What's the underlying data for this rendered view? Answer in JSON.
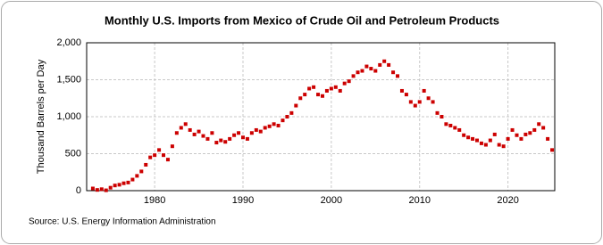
{
  "chart_data": {
    "type": "scatter",
    "title": "Monthly U.S. Imports from Mexico of Crude Oil and Petroleum Products",
    "y_label": "Thousand Barrels per Day",
    "source": "Source: U.S. Energy Information Administration",
    "color": "#cc0000",
    "grid": true,
    "xlim": [
      1972.3,
      2025.3
    ],
    "xticks": [
      1980,
      1990,
      2000,
      2010,
      2020
    ],
    "ylim": [
      0,
      2000
    ],
    "yticks": [
      0,
      500,
      {
        "value": 1000,
        "label": "1,000"
      },
      {
        "value": 1500,
        "label": "1,500"
      },
      {
        "value": 2000,
        "label": "2,000"
      }
    ],
    "x": [
      1973.0,
      1973.5,
      1974.0,
      1974.5,
      1975.0,
      1975.5,
      1976.0,
      1976.5,
      1977.0,
      1977.5,
      1978.0,
      1978.5,
      1979.0,
      1979.5,
      1980.0,
      1980.5,
      1981.0,
      1981.5,
      1982.0,
      1982.5,
      1983.0,
      1983.5,
      1984.0,
      1984.5,
      1985.0,
      1985.5,
      1986.0,
      1986.5,
      1987.0,
      1987.5,
      1988.0,
      1988.5,
      1989.0,
      1989.5,
      1990.0,
      1990.5,
      1991.0,
      1991.5,
      1992.0,
      1992.5,
      1993.0,
      1993.5,
      1994.0,
      1994.5,
      1995.0,
      1995.5,
      1996.0,
      1996.5,
      1997.0,
      1997.5,
      1998.0,
      1998.5,
      1999.0,
      1999.5,
      2000.0,
      2000.5,
      2001.0,
      2001.5,
      2002.0,
      2002.5,
      2003.0,
      2003.5,
      2004.0,
      2004.5,
      2005.0,
      2005.5,
      2006.0,
      2006.5,
      2007.0,
      2007.5,
      2008.0,
      2008.5,
      2009.0,
      2009.5,
      2010.0,
      2010.5,
      2011.0,
      2011.5,
      2012.0,
      2012.5,
      2013.0,
      2013.5,
      2014.0,
      2014.5,
      2015.0,
      2015.5,
      2016.0,
      2016.5,
      2017.0,
      2017.5,
      2018.0,
      2018.5,
      2019.0,
      2019.5,
      2020.0,
      2020.5,
      2021.0,
      2021.5,
      2022.0,
      2022.5,
      2023.0,
      2023.5,
      2024.0,
      2024.5,
      2025.0
    ],
    "values": [
      30,
      10,
      20,
      5,
      40,
      70,
      80,
      100,
      110,
      150,
      200,
      260,
      350,
      450,
      480,
      550,
      480,
      420,
      600,
      780,
      850,
      900,
      820,
      760,
      800,
      740,
      700,
      780,
      650,
      680,
      660,
      700,
      750,
      780,
      720,
      700,
      780,
      820,
      800,
      850,
      870,
      900,
      880,
      950,
      1000,
      1050,
      1150,
      1250,
      1300,
      1380,
      1400,
      1300,
      1280,
      1350,
      1380,
      1400,
      1350,
      1450,
      1480,
      1550,
      1600,
      1620,
      1680,
      1650,
      1620,
      1700,
      1750,
      1700,
      1600,
      1550,
      1350,
      1300,
      1200,
      1150,
      1200,
      1350,
      1250,
      1200,
      1050,
      1000,
      900,
      880,
      850,
      820,
      750,
      720,
      700,
      680,
      640,
      620,
      680,
      760,
      620,
      600,
      700,
      820,
      750,
      700,
      760,
      780,
      820,
      900,
      850,
      700,
      550
    ]
  }
}
